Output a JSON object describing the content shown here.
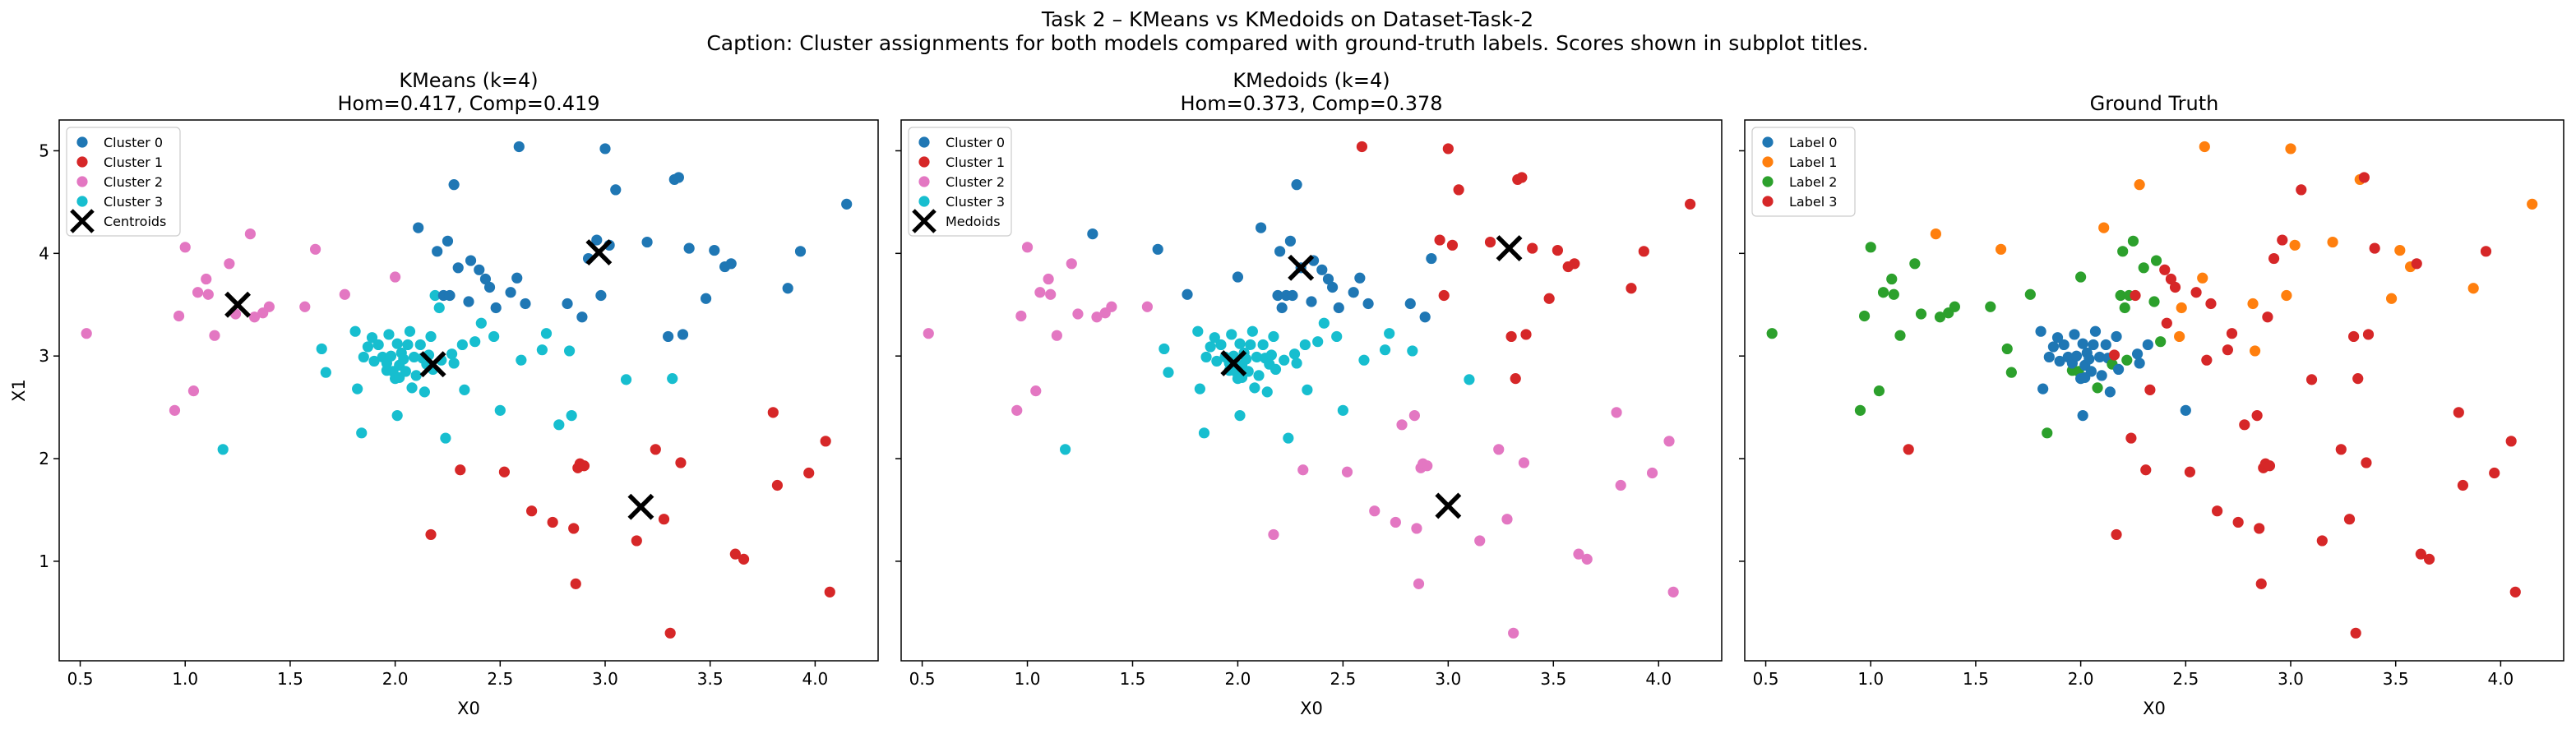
{
  "figure": {
    "suptitle": "Task 2 – KMeans vs KMedoids on Dataset-Task-2",
    "caption": "Caption: Cluster assignments for both models compared with ground-truth labels. Scores shown in subplot titles."
  },
  "colors": {
    "tab_blue": "#1f77b4",
    "tab_orange": "#ff7f0e",
    "tab_green": "#2ca02c",
    "tab_red": "#d62728",
    "tab_pink": "#e377c2",
    "tab_cyan": "#17becf",
    "marker_x": "#000000"
  },
  "points": [
    [
      0.53,
      3.22,
      2,
      2,
      2
    ],
    [
      0.95,
      2.47,
      2,
      2,
      2
    ],
    [
      0.97,
      3.39,
      2,
      2,
      2
    ],
    [
      1.0,
      4.06,
      2,
      2,
      2
    ],
    [
      1.04,
      2.66,
      2,
      2,
      2
    ],
    [
      1.06,
      3.62,
      2,
      2,
      2
    ],
    [
      1.1,
      3.75,
      2,
      2,
      2
    ],
    [
      1.11,
      3.6,
      2,
      2,
      2
    ],
    [
      1.14,
      3.2,
      2,
      2,
      2
    ],
    [
      1.18,
      2.09,
      3,
      3,
      3
    ],
    [
      1.21,
      3.9,
      2,
      2,
      2
    ],
    [
      1.24,
      3.41,
      2,
      2,
      2
    ],
    [
      1.31,
      4.19,
      2,
      0,
      1
    ],
    [
      1.33,
      3.38,
      2,
      2,
      2
    ],
    [
      1.37,
      3.42,
      2,
      2,
      2
    ],
    [
      1.4,
      3.48,
      2,
      2,
      2
    ],
    [
      1.57,
      3.48,
      2,
      2,
      2
    ],
    [
      1.62,
      4.04,
      2,
      0,
      1
    ],
    [
      1.65,
      3.07,
      3,
      3,
      2
    ],
    [
      1.67,
      2.84,
      3,
      3,
      2
    ],
    [
      1.76,
      3.6,
      2,
      0,
      2
    ],
    [
      1.81,
      3.24,
      3,
      3,
      0
    ],
    [
      1.82,
      2.68,
      3,
      3,
      0
    ],
    [
      1.84,
      2.25,
      3,
      3,
      2
    ],
    [
      1.85,
      2.99,
      3,
      3,
      0
    ],
    [
      1.87,
      3.09,
      3,
      3,
      0
    ],
    [
      1.89,
      3.18,
      3,
      3,
      0
    ],
    [
      1.9,
      2.95,
      3,
      3,
      0
    ],
    [
      1.92,
      3.11,
      3,
      3,
      0
    ],
    [
      1.94,
      2.99,
      3,
      3,
      0
    ],
    [
      1.96,
      2.86,
      3,
      3,
      2
    ],
    [
      1.96,
      2.93,
      3,
      3,
      0
    ],
    [
      1.97,
      3.21,
      3,
      3,
      0
    ],
    [
      1.98,
      3.0,
      3,
      3,
      0
    ],
    [
      1.99,
      2.85,
      3,
      3,
      2
    ],
    [
      2.0,
      3.77,
      2,
      0,
      2
    ],
    [
      2.0,
      2.78,
      3,
      3,
      0
    ],
    [
      2.01,
      2.42,
      3,
      3,
      0
    ],
    [
      2.01,
      3.12,
      3,
      3,
      0
    ],
    [
      2.02,
      2.79,
      3,
      3,
      0
    ],
    [
      2.02,
      2.91,
      3,
      3,
      0
    ],
    [
      2.03,
      3.03,
      3,
      3,
      0
    ],
    [
      2.04,
      2.97,
      3,
      3,
      0
    ],
    [
      2.05,
      2.85,
      3,
      3,
      0
    ],
    [
      2.06,
      3.11,
      3,
      3,
      0
    ],
    [
      2.07,
      3.24,
      3,
      3,
      0
    ],
    [
      2.08,
      2.69,
      3,
      3,
      2
    ],
    [
      2.09,
      2.99,
      3,
      3,
      0
    ],
    [
      2.1,
      2.81,
      3,
      3,
      0
    ],
    [
      2.11,
      4.25,
      0,
      0,
      1
    ],
    [
      2.12,
      3.11,
      3,
      3,
      0
    ],
    [
      2.13,
      2.98,
      3,
      3,
      0
    ],
    [
      2.14,
      2.65,
      3,
      3,
      0
    ],
    [
      2.15,
      2.92,
      3,
      3,
      2
    ],
    [
      2.16,
      3.01,
      3,
      3,
      3
    ],
    [
      2.17,
      1.26,
      1,
      2,
      3
    ],
    [
      2.17,
      3.19,
      3,
      3,
      0
    ],
    [
      2.18,
      2.87,
      3,
      3,
      0
    ],
    [
      2.19,
      3.59,
      3,
      0,
      2
    ],
    [
      2.2,
      4.02,
      0,
      0,
      2
    ],
    [
      2.21,
      3.47,
      3,
      0,
      2
    ],
    [
      2.22,
      2.96,
      3,
      3,
      2
    ],
    [
      2.23,
      3.59,
      0,
      0,
      2
    ],
    [
      2.24,
      2.2,
      3,
      3,
      3
    ],
    [
      2.25,
      4.12,
      0,
      0,
      2
    ],
    [
      2.26,
      3.59,
      0,
      0,
      3
    ],
    [
      2.27,
      3.02,
      3,
      3,
      0
    ],
    [
      2.28,
      2.93,
      3,
      3,
      0
    ],
    [
      2.28,
      4.67,
      0,
      0,
      1
    ],
    [
      2.3,
      3.86,
      0,
      0,
      2
    ],
    [
      2.31,
      1.89,
      1,
      2,
      3
    ],
    [
      2.32,
      3.11,
      3,
      3,
      0
    ],
    [
      2.33,
      2.67,
      3,
      3,
      3
    ],
    [
      2.35,
      3.53,
      0,
      0,
      2
    ],
    [
      2.36,
      3.93,
      0,
      0,
      2
    ],
    [
      2.38,
      3.14,
      3,
      3,
      2
    ],
    [
      2.4,
      3.84,
      0,
      0,
      3
    ],
    [
      2.41,
      3.32,
      3,
      3,
      3
    ],
    [
      2.43,
      3.75,
      0,
      0,
      3
    ],
    [
      2.45,
      3.67,
      0,
      0,
      3
    ],
    [
      2.47,
      3.19,
      3,
      3,
      1
    ],
    [
      2.48,
      3.47,
      0,
      0,
      1
    ],
    [
      2.5,
      2.47,
      3,
      3,
      0
    ],
    [
      2.52,
      1.87,
      1,
      2,
      3
    ],
    [
      2.55,
      3.62,
      0,
      0,
      3
    ],
    [
      2.58,
      3.76,
      0,
      0,
      1
    ],
    [
      2.59,
      5.04,
      0,
      1,
      1
    ],
    [
      2.6,
      2.96,
      3,
      3,
      3
    ],
    [
      2.62,
      3.51,
      0,
      0,
      3
    ],
    [
      2.65,
      1.49,
      1,
      2,
      3
    ],
    [
      2.7,
      3.06,
      3,
      3,
      3
    ],
    [
      2.72,
      3.22,
      3,
      3,
      3
    ],
    [
      2.75,
      1.38,
      1,
      2,
      3
    ],
    [
      2.78,
      2.33,
      3,
      2,
      3
    ],
    [
      2.82,
      3.51,
      0,
      0,
      1
    ],
    [
      2.83,
      3.05,
      3,
      3,
      1
    ],
    [
      2.84,
      2.42,
      3,
      2,
      3
    ],
    [
      2.85,
      1.32,
      1,
      2,
      3
    ],
    [
      2.86,
      0.78,
      1,
      2,
      3
    ],
    [
      2.87,
      1.91,
      1,
      2,
      3
    ],
    [
      2.88,
      1.95,
      1,
      2,
      3
    ],
    [
      2.89,
      3.38,
      0,
      0,
      3
    ],
    [
      2.9,
      1.93,
      1,
      2,
      3
    ],
    [
      2.92,
      3.95,
      0,
      0,
      3
    ],
    [
      2.96,
      4.13,
      0,
      1,
      3
    ],
    [
      2.98,
      3.59,
      0,
      1,
      1
    ],
    [
      3.0,
      5.02,
      0,
      1,
      1
    ],
    [
      3.02,
      4.08,
      0,
      1,
      1
    ],
    [
      3.05,
      4.62,
      0,
      1,
      3
    ],
    [
      3.1,
      2.77,
      3,
      3,
      3
    ],
    [
      3.15,
      1.2,
      1,
      2,
      3
    ],
    [
      3.2,
      4.11,
      0,
      1,
      1
    ],
    [
      3.24,
      2.09,
      1,
      2,
      3
    ],
    [
      3.28,
      1.41,
      1,
      2,
      3
    ],
    [
      3.3,
      3.19,
      0,
      1,
      3
    ],
    [
      3.31,
      0.3,
      1,
      2,
      3
    ],
    [
      3.32,
      2.78,
      3,
      1,
      3
    ],
    [
      3.33,
      4.72,
      0,
      1,
      1
    ],
    [
      3.35,
      4.74,
      0,
      1,
      3
    ],
    [
      3.36,
      1.96,
      1,
      2,
      3
    ],
    [
      3.37,
      3.21,
      0,
      1,
      3
    ],
    [
      3.4,
      4.05,
      0,
      1,
      3
    ],
    [
      3.48,
      3.56,
      0,
      1,
      1
    ],
    [
      3.52,
      4.03,
      0,
      1,
      1
    ],
    [
      3.57,
      3.87,
      0,
      1,
      1
    ],
    [
      3.6,
      3.9,
      0,
      1,
      3
    ],
    [
      3.62,
      1.07,
      1,
      2,
      3
    ],
    [
      3.66,
      1.02,
      1,
      2,
      3
    ],
    [
      3.8,
      2.45,
      1,
      2,
      3
    ],
    [
      3.82,
      1.74,
      1,
      2,
      3
    ],
    [
      3.87,
      3.66,
      0,
      1,
      1
    ],
    [
      3.93,
      4.02,
      0,
      1,
      3
    ],
    [
      3.97,
      1.86,
      1,
      2,
      3
    ],
    [
      4.05,
      2.17,
      1,
      2,
      3
    ],
    [
      4.07,
      0.7,
      1,
      2,
      3
    ],
    [
      4.15,
      4.48,
      0,
      1,
      1
    ]
  ],
  "chart_data": [
    {
      "type": "scatter",
      "title": "KMeans (k=4)",
      "subtitle": "Hom=0.417, Comp=0.419",
      "xlabel": "X0",
      "ylabel": "X1",
      "xlim": [
        0.4,
        4.3
      ],
      "ylim": [
        0.03,
        5.3
      ],
      "xticks": [
        0.5,
        1.0,
        1.5,
        2.0,
        2.5,
        3.0,
        3.5,
        4.0
      ],
      "yticks": [
        1,
        2,
        3,
        4,
        5
      ],
      "legend_loc": "upper left",
      "series": [
        {
          "name": "Cluster 0",
          "color": "#1f77b4"
        },
        {
          "name": "Cluster 1",
          "color": "#d62728"
        },
        {
          "name": "Cluster 2",
          "color": "#e377c2"
        },
        {
          "name": "Cluster 3",
          "color": "#17becf"
        }
      ],
      "label_column": 2,
      "centers": {
        "name": "Centroids",
        "points": [
          [
            1.25,
            3.5
          ],
          [
            2.97,
            4.01
          ],
          [
            2.18,
            2.92
          ],
          [
            3.17,
            1.53
          ]
        ]
      }
    },
    {
      "type": "scatter",
      "title": "KMedoids (k=4)",
      "subtitle": "Hom=0.373, Comp=0.378",
      "xlabel": "X0",
      "ylabel": "",
      "xlim": [
        0.4,
        4.3
      ],
      "ylim": [
        0.03,
        5.3
      ],
      "xticks": [
        0.5,
        1.0,
        1.5,
        2.0,
        2.5,
        3.0,
        3.5,
        4.0
      ],
      "yticks": [
        1,
        2,
        3,
        4,
        5
      ],
      "legend_loc": "upper left",
      "series": [
        {
          "name": "Cluster 0",
          "color": "#1f77b4"
        },
        {
          "name": "Cluster 1",
          "color": "#d62728"
        },
        {
          "name": "Cluster 2",
          "color": "#e377c2"
        },
        {
          "name": "Cluster 3",
          "color": "#17becf"
        }
      ],
      "label_column": 3,
      "centers": {
        "name": "Medoids",
        "points": [
          [
            1.98,
            2.93
          ],
          [
            2.3,
            3.86
          ],
          [
            3.29,
            4.05
          ],
          [
            3.0,
            1.54
          ]
        ]
      }
    },
    {
      "type": "scatter",
      "title": "Ground Truth",
      "subtitle": "",
      "xlabel": "X0",
      "ylabel": "",
      "xlim": [
        0.4,
        4.3
      ],
      "ylim": [
        0.03,
        5.3
      ],
      "xticks": [
        0.5,
        1.0,
        1.5,
        2.0,
        2.5,
        3.0,
        3.5,
        4.0
      ],
      "yticks": [
        1,
        2,
        3,
        4,
        5
      ],
      "legend_loc": "upper left",
      "series": [
        {
          "name": "Label 0",
          "color": "#1f77b4"
        },
        {
          "name": "Label 1",
          "color": "#ff7f0e"
        },
        {
          "name": "Label 2",
          "color": "#2ca02c"
        },
        {
          "name": "Label 3",
          "color": "#d62728"
        }
      ],
      "label_column": 4,
      "centers": null
    }
  ]
}
